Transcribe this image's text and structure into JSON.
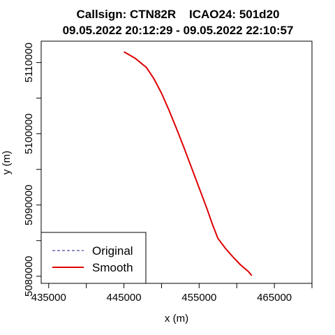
{
  "chart_data": {
    "type": "line",
    "title_line1": "Callsign: CTN82R    ICAO24: 501d20",
    "title_line2": "09.05.2022 20:12:29 - 09.05.2022 22:10:57",
    "xlabel": "x (m)",
    "ylabel": "y (m)",
    "xlim": [
      434000,
      470000
    ],
    "ylim": [
      5079000,
      5113000
    ],
    "x_ticks": [
      435000,
      440000,
      445000,
      450000,
      455000,
      460000,
      465000,
      470000
    ],
    "x_tick_labels": [
      "435000",
      "",
      "445000",
      "",
      "455000",
      "",
      "465000",
      ""
    ],
    "y_ticks": [
      5080000,
      5085000,
      5090000,
      5095000,
      5100000,
      5105000,
      5110000
    ],
    "y_tick_labels": [
      "5080000",
      "",
      "5090000",
      "",
      "5100000",
      "",
      "5110000"
    ],
    "grid": false,
    "legend_position": "bottom-left",
    "series": [
      {
        "name": "Original",
        "color": "#1a1a8c",
        "style": "dashed",
        "x": [
          445000,
          446500,
          448000,
          449000,
          450000,
          451000,
          452000,
          453000,
          454000,
          455000,
          456000,
          456800,
          457500,
          458500,
          459500,
          460500,
          461500,
          462000
        ],
        "y": [
          5111500,
          5110600,
          5109300,
          5107700,
          5105700,
          5103300,
          5100700,
          5098000,
          5095200,
          5092400,
          5089600,
          5087200,
          5085300,
          5083900,
          5082700,
          5081600,
          5080700,
          5080100
        ]
      },
      {
        "name": "Smooth",
        "color": "#dd0000",
        "style": "solid",
        "x": [
          445000,
          446500,
          448000,
          449000,
          450000,
          451000,
          452000,
          453000,
          454000,
          455000,
          456000,
          456800,
          457500,
          458500,
          459500,
          460500,
          461500,
          462000
        ],
        "y": [
          5111500,
          5110600,
          5109300,
          5107700,
          5105700,
          5103300,
          5100700,
          5098000,
          5095200,
          5092400,
          5089600,
          5087200,
          5085300,
          5083900,
          5082700,
          5081600,
          5080700,
          5080100
        ]
      }
    ]
  }
}
